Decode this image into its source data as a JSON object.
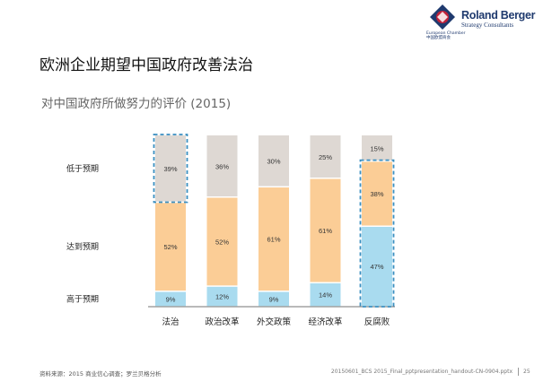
{
  "logo": {
    "name": "Roland Berger",
    "tagline": "Strategy Consultants",
    "chamber": "European Chamber",
    "chamber_sub": "中国欧盟商会"
  },
  "title": "欧洲企业期望中国政府改善法治",
  "subtitle": "对中国政府所做努力的评价 (2015)",
  "chart_data": {
    "type": "bar",
    "stacked": true,
    "percent_stacked": true,
    "categories": [
      "法治",
      "政治改革",
      "外交政策",
      "经济改革",
      "反腐败"
    ],
    "series": [
      {
        "name": "高于预期",
        "values": [
          9,
          12,
          9,
          14,
          47
        ],
        "color": "#a9dbef"
      },
      {
        "name": "达到预期",
        "values": [
          52,
          52,
          61,
          61,
          38
        ],
        "color": "#fbcd96"
      },
      {
        "name": "低于预期",
        "values": [
          39,
          36,
          30,
          25,
          15
        ],
        "color": "#ded8d3"
      }
    ],
    "ylim": [
      0,
      100
    ],
    "highlights": [
      {
        "category": "法治",
        "series": "低于预期"
      },
      {
        "category": "反腐败",
        "series": [
          "高于预期",
          "达到预期"
        ]
      }
    ],
    "highlight_color": "#3a8fc0",
    "label_suffix": "%"
  },
  "footer": {
    "source": "资料来源：2015 商业信心调查；罗兰贝格分析",
    "file": "20150601_BCS 2015_Final_pptpresentation_handout-CN-0904.pptx",
    "page": "25"
  }
}
